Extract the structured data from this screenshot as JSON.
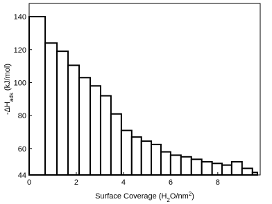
{
  "chart_data": {
    "type": "histogram",
    "x_label_parts": [
      "Surface Coverage (H",
      "2",
      "O/nm",
      "2",
      ")"
    ],
    "y_label_parts": [
      "-ΔH",
      "ads",
      " (kJ/mol)"
    ],
    "bins": [
      0,
      0.68,
      1.18,
      1.65,
      2.12,
      2.59,
      3.03,
      3.47,
      3.91,
      4.35,
      4.76,
      5.18,
      5.59,
      6.0,
      6.44,
      6.88,
      7.32,
      7.76,
      8.18,
      8.59,
      9.03,
      9.47,
      9.68
    ],
    "values": [
      140,
      124,
      119,
      110.5,
      103,
      98,
      92,
      81,
      71,
      67,
      64.5,
      62.5,
      58,
      56,
      55,
      53.5,
      52,
      51,
      50,
      52,
      48,
      45.5
    ],
    "color": "#ffffff",
    "edge_color": "#000000",
    "xlim": [
      0,
      9.8
    ],
    "xticks": [
      0,
      2,
      4,
      6,
      8
    ],
    "ylim": [
      44,
      148
    ],
    "yticks": [
      44,
      60,
      80,
      100,
      120,
      140
    ]
  }
}
